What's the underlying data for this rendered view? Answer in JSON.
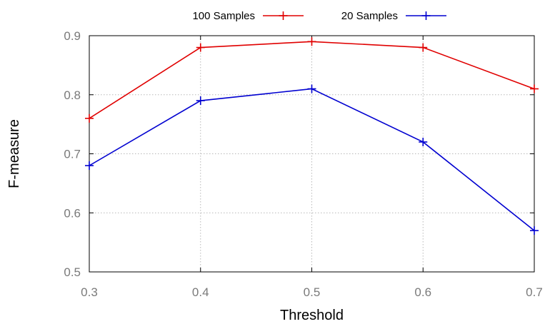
{
  "chart_data": {
    "type": "line",
    "x": [
      0.3,
      0.4,
      0.5,
      0.6,
      0.7
    ],
    "series": [
      {
        "name": "100 Samples",
        "color": "#e00000",
        "values": [
          0.76,
          0.88,
          0.89,
          0.88,
          0.81
        ]
      },
      {
        "name": "20 Samples",
        "color": "#0000d0",
        "values": [
          0.68,
          0.79,
          0.81,
          0.72,
          0.57
        ]
      }
    ],
    "xlabel": "Threshold",
    "ylabel": "F-measure",
    "xlim": [
      0.3,
      0.7
    ],
    "ylim": [
      0.5,
      0.9
    ],
    "xticks": [
      "0.3",
      "0.4",
      "0.5",
      "0.6",
      "0.7"
    ],
    "yticks": [
      "0.5",
      "0.6",
      "0.7",
      "0.8",
      "0.9"
    ],
    "grid": true,
    "legend_position": "top"
  }
}
